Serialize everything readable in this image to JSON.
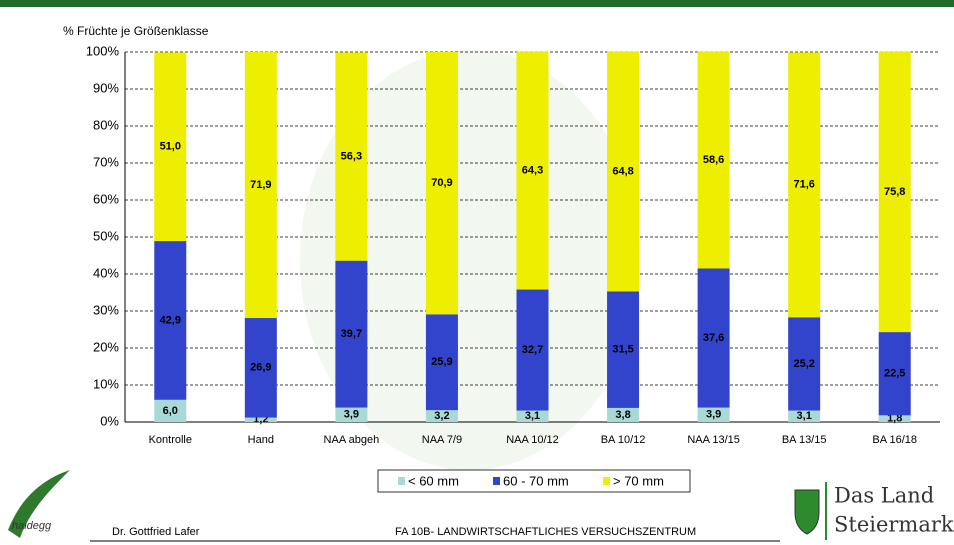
{
  "chart_data": {
    "type": "bar",
    "stacked": true,
    "y_axis_title": "% Früchte je Größenklasse",
    "categories": [
      "Kontrolle",
      "Hand",
      "NAA abgeh",
      "NAA 7/9",
      "NAA 10/12",
      "BA 10/12",
      "NAA 13/15",
      "BA 13/15",
      "BA 16/18"
    ],
    "series": [
      {
        "name": "< 60 mm",
        "color": "#a9d9d6",
        "values": [
          6.0,
          1.2,
          3.9,
          3.2,
          3.1,
          3.8,
          3.9,
          3.1,
          1.8
        ],
        "value_labels": [
          "6,0",
          "1,2",
          "3,9",
          "3,2",
          "3,1",
          "3,8",
          "3,9",
          "3,1",
          "1,8"
        ]
      },
      {
        "name": "60 - 70 mm",
        "color": "#3344cc",
        "values": [
          42.9,
          26.9,
          39.7,
          25.9,
          32.7,
          31.5,
          37.6,
          25.2,
          22.5
        ],
        "value_labels": [
          "42,9",
          "26,9",
          "39,7",
          "25,9",
          "32,7",
          "31,5",
          "37,6",
          "25,2",
          "22,5"
        ]
      },
      {
        "name": "> 70 mm",
        "color": "#eeee00",
        "values": [
          51.0,
          71.9,
          56.3,
          70.9,
          64.3,
          64.8,
          58.6,
          71.6,
          75.8
        ],
        "value_labels": [
          "51,0",
          "71,9",
          "56,3",
          "70,9",
          "64,3",
          "64,8",
          "58,6",
          "71,6",
          "75,8"
        ]
      }
    ],
    "ylim": [
      0,
      100
    ],
    "yticks": [
      {
        "value": 0,
        "label": "0%"
      },
      {
        "value": 10,
        "label": "10%"
      },
      {
        "value": 20,
        "label": "20%"
      },
      {
        "value": 30,
        "label": "30%"
      },
      {
        "value": 40,
        "label": "40%"
      },
      {
        "value": 50,
        "label": "50%"
      },
      {
        "value": 60,
        "label": "60%"
      },
      {
        "value": 70,
        "label": "70%"
      },
      {
        "value": 80,
        "label": "80%"
      },
      {
        "value": 90,
        "label": "90%"
      },
      {
        "value": 100,
        "label": "100%"
      }
    ],
    "grid": true,
    "legend": "bottom"
  },
  "footer": {
    "author": "Dr. Gottfried Lafer",
    "institute": "FA 10B- LANDWIRTSCHAFTLICHES VERSUCHSZENTRUM"
  },
  "logos": {
    "left": "haidegg",
    "right_line1": "Das Land",
    "right_line2": "Steiermark"
  }
}
